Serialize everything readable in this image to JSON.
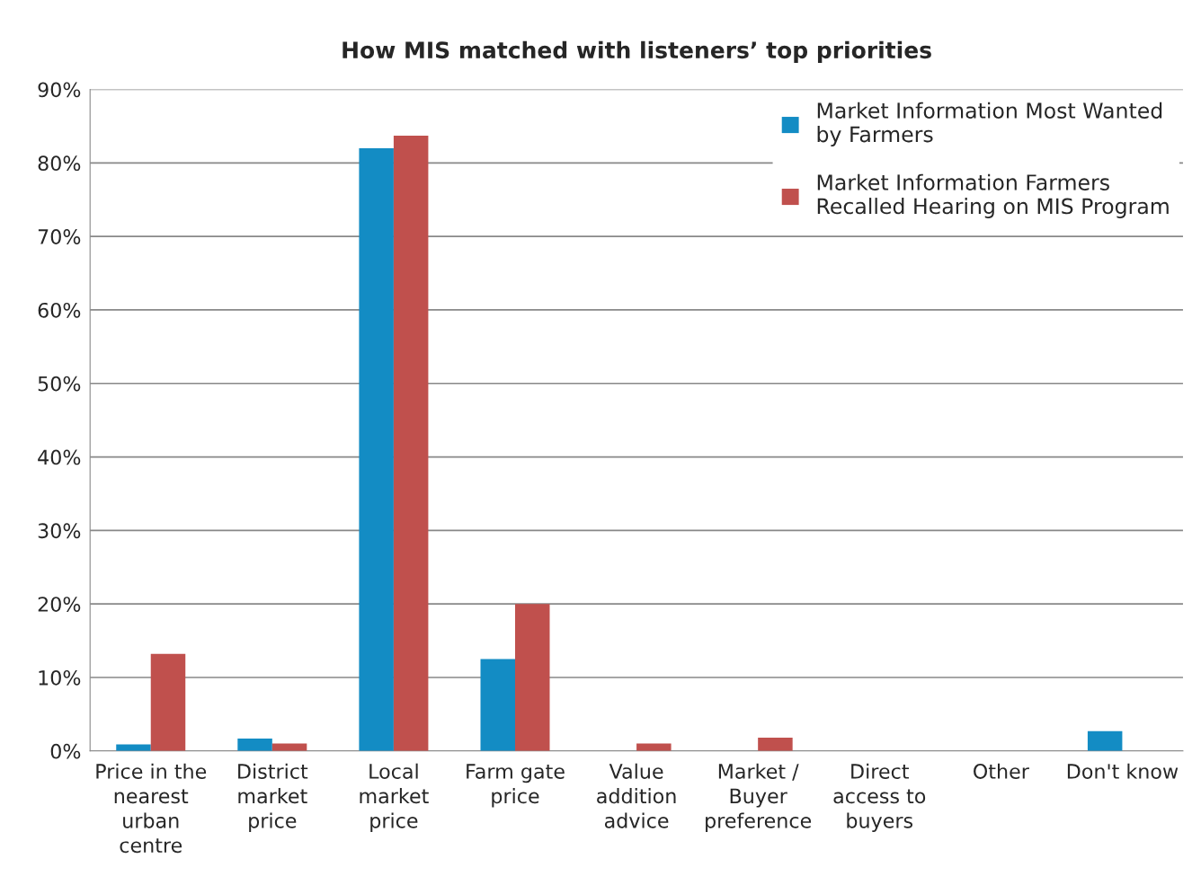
{
  "chart_data": {
    "type": "bar",
    "title": "How MIS matched with listeners’ top priorities",
    "categories": [
      "Price in the\nnearest\nurban\ncentre",
      "District\nmarket\nprice",
      "Local\nmarket\nprice",
      "Farm gate\nprice",
      "Value\naddition\nadvice",
      "Market /\nBuyer\npreference",
      "Direct\naccess to\nbuyers",
      "Other",
      "Don't know"
    ],
    "series": [
      {
        "name": "Market Information Most Wanted\nby Farmers",
        "color": "#138cc4",
        "values": [
          0.9,
          1.7,
          82,
          12.5,
          null,
          null,
          null,
          null,
          2.7
        ]
      },
      {
        "name": "Market Information Farmers\nRecalled Hearing on MIS Program",
        "color": "#c0504d",
        "values": [
          13.2,
          1,
          83.7,
          20,
          1,
          1.8,
          null,
          null,
          null
        ]
      }
    ],
    "ylim": [
      0,
      90
    ],
    "yticks": [
      {
        "value": 0,
        "label": "0%"
      },
      {
        "value": 10,
        "label": "10%"
      },
      {
        "value": 20,
        "label": "20%"
      },
      {
        "value": 30,
        "label": "30%"
      },
      {
        "value": 40,
        "label": "40%"
      },
      {
        "value": 50,
        "label": "50%"
      },
      {
        "value": 60,
        "label": "60%"
      },
      {
        "value": 70,
        "label": "70%"
      },
      {
        "value": 80,
        "label": "80%"
      },
      {
        "value": 90,
        "label": "90%"
      }
    ],
    "grid": "y",
    "legend": "top right"
  }
}
